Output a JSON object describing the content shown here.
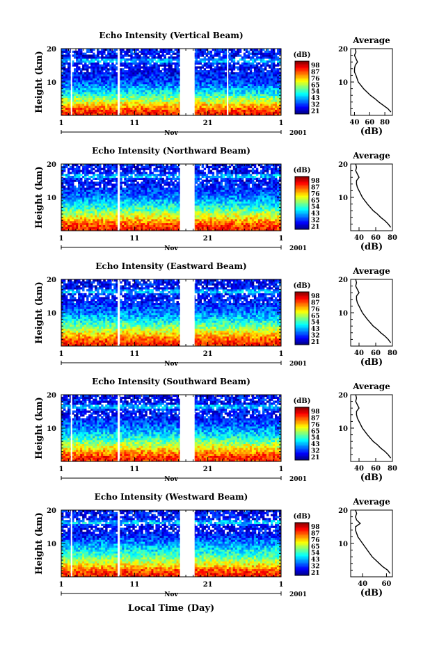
{
  "figure": {
    "xlabel": "Local Time (Day)",
    "month_label": "Nov",
    "year_label": "2001",
    "colorbar_unit": "(dB)",
    "colorbar_ticks": [
      "98",
      "87",
      "76",
      "65",
      "54",
      "43",
      "32",
      "21"
    ],
    "profile_title": "Average",
    "profile_xlabel": "(dB)",
    "ylabel": "Height (km)"
  },
  "chart_data": [
    {
      "type": "heatmap",
      "title": "Echo Intensity (Vertical Beam)",
      "ylabel": "Height (km)",
      "xlim": [
        1,
        31
      ],
      "ylim": [
        0,
        20
      ],
      "x_ticks": [
        "1",
        "11",
        "21",
        "1"
      ],
      "y_ticks": [
        "20",
        "10"
      ],
      "color_range_db": [
        21,
        98
      ],
      "data_gaps_day": [
        [
          2.3,
          2.5
        ],
        [
          8.7,
          9.0
        ],
        [
          17.2,
          19.2
        ],
        [
          23.6,
          23.8
        ]
      ],
      "profile": {
        "title": "Average",
        "xlabel": "(dB)",
        "xlim": [
          35,
          90
        ],
        "x_ticks": [
          "40",
          "60",
          "80"
        ],
        "y_ticks": [
          "20",
          "10"
        ],
        "height_km": [
          1,
          2,
          3,
          4,
          5,
          6,
          8,
          10,
          12,
          13,
          14,
          15,
          16,
          17,
          18,
          19,
          20
        ],
        "db": [
          88,
          84,
          78,
          72,
          67,
          61,
          52,
          45,
          42,
          40,
          40,
          41,
          44,
          42,
          40,
          42,
          41
        ]
      }
    },
    {
      "type": "heatmap",
      "title": "Echo Intensity (Northward Beam)",
      "ylabel": "Height (km)",
      "xlim": [
        1,
        31
      ],
      "ylim": [
        0,
        20
      ],
      "x_ticks": [
        "1",
        "11",
        "21",
        "1"
      ],
      "y_ticks": [
        "20",
        "10"
      ],
      "color_range_db": [
        21,
        98
      ],
      "data_gaps_day": [
        [
          8.7,
          9.0
        ],
        [
          17.2,
          19.2
        ]
      ],
      "profile": {
        "title": "Average",
        "xlabel": "(dB)",
        "xlim": [
          30,
          80
        ],
        "x_ticks": [
          "40",
          "60",
          "80"
        ],
        "y_ticks": [
          "20",
          "10"
        ],
        "height_km": [
          1,
          2,
          3,
          4,
          5,
          6,
          8,
          10,
          12,
          13,
          14,
          15,
          16,
          17,
          18,
          19,
          20
        ],
        "db": [
          78,
          75,
          71,
          66,
          62,
          57,
          50,
          44,
          40,
          38,
          37,
          37,
          40,
          38,
          36,
          37,
          36
        ]
      }
    },
    {
      "type": "heatmap",
      "title": "Echo Intensity (Eastward Beam)",
      "ylabel": "Height (km)",
      "xlim": [
        1,
        31
      ],
      "ylim": [
        0,
        20
      ],
      "x_ticks": [
        "1",
        "11",
        "21",
        "1"
      ],
      "y_ticks": [
        "20",
        "10"
      ],
      "color_range_db": [
        21,
        98
      ],
      "data_gaps_day": [
        [
          8.7,
          9.0
        ],
        [
          17.2,
          19.2
        ]
      ],
      "profile": {
        "title": "Average",
        "xlabel": "(dB)",
        "xlim": [
          30,
          80
        ],
        "x_ticks": [
          "40",
          "60",
          "80"
        ],
        "y_ticks": [
          "20",
          "10"
        ],
        "height_km": [
          1,
          2,
          3,
          4,
          5,
          6,
          8,
          10,
          12,
          13,
          14,
          15,
          16,
          17,
          18,
          19,
          20
        ],
        "db": [
          78,
          75,
          71,
          66,
          62,
          57,
          50,
          44,
          40,
          38,
          37,
          37,
          40,
          38,
          36,
          37,
          36
        ]
      }
    },
    {
      "type": "heatmap",
      "title": "Echo Intensity (Southward Beam)",
      "ylabel": "Height (km)",
      "xlim": [
        1,
        31
      ],
      "ylim": [
        0,
        20
      ],
      "x_ticks": [
        "1",
        "11",
        "21",
        "1"
      ],
      "y_ticks": [
        "20",
        "10"
      ],
      "color_range_db": [
        21,
        98
      ],
      "data_gaps_day": [
        [
          2.3,
          2.5
        ],
        [
          8.7,
          9.0
        ],
        [
          17.2,
          19.2
        ]
      ],
      "profile": {
        "title": "Average",
        "xlabel": "(dB)",
        "xlim": [
          30,
          80
        ],
        "x_ticks": [
          "40",
          "60",
          "80"
        ],
        "y_ticks": [
          "20",
          "10"
        ],
        "height_km": [
          1,
          2,
          3,
          4,
          5,
          6,
          8,
          10,
          12,
          13,
          14,
          15,
          16,
          17,
          18,
          19,
          20
        ],
        "db": [
          78,
          75,
          71,
          66,
          62,
          57,
          50,
          44,
          40,
          38,
          37,
          37,
          40,
          38,
          36,
          37,
          36
        ]
      }
    },
    {
      "type": "heatmap",
      "title": "Echo Intensity (Westward Beam)",
      "ylabel": "Height (km)",
      "xlim": [
        1,
        31
      ],
      "ylim": [
        0,
        20
      ],
      "x_ticks": [
        "1",
        "11",
        "21",
        "1"
      ],
      "y_ticks": [
        "20",
        "10"
      ],
      "color_range_db": [
        21,
        98
      ],
      "data_gaps_day": [
        [
          2.3,
          2.5
        ],
        [
          8.7,
          9.0
        ],
        [
          17.2,
          19.2
        ]
      ],
      "profile": {
        "title": "Average",
        "xlabel": "(dB)",
        "xlim": [
          30,
          65
        ],
        "x_ticks": [
          "40",
          "60"
        ],
        "y_ticks": [
          "20",
          "10"
        ],
        "height_km": [
          1,
          2,
          3,
          4,
          5,
          6,
          8,
          10,
          12,
          13,
          14,
          15,
          16,
          17,
          18,
          19,
          20
        ],
        "db": [
          63,
          61,
          57,
          54,
          51,
          48,
          44,
          40,
          36,
          35,
          34,
          34,
          38,
          35,
          34,
          35,
          34
        ]
      }
    }
  ]
}
